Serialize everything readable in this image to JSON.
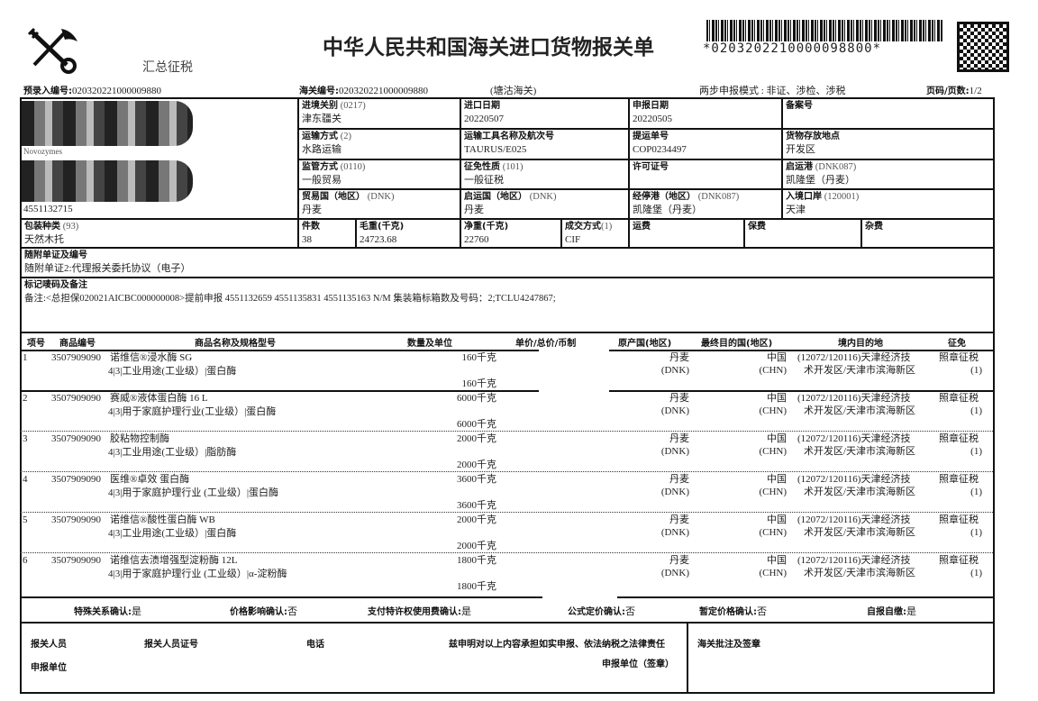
{
  "header": {
    "title": "中华人民共和国海关进口货物报关单",
    "subtitle": "汇总征税",
    "barcode_text": "*0203202210000098800*",
    "logo": "customs-emblem",
    "pre_entry_label": "预录入编号:",
    "pre_entry_no": "020320221000009880",
    "customs_no_label": "海关编号:",
    "customs_no": "020320221000009880",
    "customs_office": "(塘沽海关)",
    "two_step_mode": "两步申报模式 : 非证、涉检、涉税",
    "page_label": "页码/页数:",
    "page": "1/2"
  },
  "consignee": {
    "name_partial": "Novozymes",
    "code": "4551132715"
  },
  "fields": {
    "entry_port_label": "进境关别",
    "entry_port_code": "(0217)",
    "entry_port": "津东疆关",
    "import_date_label": "进口日期",
    "import_date": "20220507",
    "declare_date_label": "申报日期",
    "declare_date": "20220505",
    "record_no_label": "备案号",
    "record_no": "",
    "transport_mode_label": "运输方式",
    "transport_mode_code": "(2)",
    "transport_mode": "水路运输",
    "vessel_label": "运输工具名称及航次号",
    "vessel": "TAURUS/E025",
    "bl_label": "提运单号",
    "bl": "COP0234497",
    "storage_label": "货物存放地点",
    "storage": "开发区",
    "supervision_label": "监管方式",
    "supervision_code": "(0110)",
    "supervision": "一般贸易",
    "levy_label": "征免性质",
    "levy_code": "(101)",
    "levy": "一般征税",
    "license_label": "许可证号",
    "license": "",
    "dep_port_label": "启运港",
    "dep_port_code": "(DNK087)",
    "dep_port": "凯隆堡（丹麦）",
    "trade_country_label": "贸易国（地区）",
    "trade_country_code": "(DNK)",
    "trade_country": "丹麦",
    "origin_country_label": "启运国（地区）",
    "origin_country_code": "(DNK)",
    "origin_country": "丹麦",
    "via_port_label": "经停港（地区）",
    "via_port_code": "(DNK087)",
    "via_port": "凯隆堡（丹麦）",
    "entry_gate_label": "入境口岸",
    "entry_gate_code": "(120001)",
    "entry_gate": "天津",
    "package_label": "包装种类",
    "package_code": "(93)",
    "package": "天然木托",
    "pieces_label": "件数",
    "pieces": "38",
    "gross_label": "毛重(千克)",
    "gross": "24723.68",
    "net_label": "净重(千克)",
    "net": "22760",
    "terms_label": "成交方式",
    "terms_code": "(1)",
    "terms": "CIF",
    "freight_label": "运费",
    "insurance_label": "保费",
    "misc_label": "杂费",
    "docs_label": "随附单证及编号",
    "docs": "随附单证2:代理报关委托协议（电子）",
    "marks_label": "标记唛码及备注",
    "marks": "备注:<总担保020021AICBC000000008>提前申报 4551132659 4551135831 4551135163 N/M 集装箱标箱数及号码：2;TCLU4247867;"
  },
  "items_header": [
    "项号",
    "商品编号",
    "商品名称及规格型号",
    "数量及单位",
    "单价/总价/币制",
    "原产国(地区)",
    "最终目的国(地区)",
    "境内目的地",
    "征免"
  ],
  "items": [
    {
      "no": "1",
      "hs": "3507909090",
      "name": "诺维信®浸水酶 SG",
      "spec": "4|3|工业用途(工业级）|蛋白酶",
      "qty1": "160千克",
      "qty2": "160千克",
      "origin": "丹麦",
      "origin_code": "(DNK)",
      "dest": "中国",
      "dest_code": "(CHN)",
      "domestic1": "(12072/120116)天津经济技",
      "domestic2": "术开发区/天津市滨海新区",
      "levy1": "照章征税",
      "levy2": "(1)"
    },
    {
      "no": "2",
      "hs": "3507909090",
      "name": "赛威®液体蛋白酶 16 L",
      "spec": "4|3|用于家庭护理行业(工业级）|蛋白酶",
      "qty1": "6000千克",
      "qty2": "6000千克",
      "origin": "丹麦",
      "origin_code": "(DNK)",
      "dest": "中国",
      "dest_code": "(CHN)",
      "domestic1": "(12072/120116)天津经济技",
      "domestic2": "术开发区/天津市滨海新区",
      "levy1": "照章征税",
      "levy2": "(1)"
    },
    {
      "no": "3",
      "hs": "3507909090",
      "name": "胶粘物控制酶",
      "spec": "4|3|工业用途(工业级）|脂肪酶",
      "qty1": "2000千克",
      "qty2": "2000千克",
      "origin": "丹麦",
      "origin_code": "(DNK)",
      "dest": "中国",
      "dest_code": "(CHN)",
      "domestic1": "(12072/120116)天津经济技",
      "domestic2": "术开发区/天津市滨海新区",
      "levy1": "照章征税",
      "levy2": "(1)"
    },
    {
      "no": "4",
      "hs": "3507909090",
      "name": "医维®卓效 蛋白酶",
      "spec": "4|3|用于家庭护理行业 (工业级）|蛋白酶",
      "qty1": "3600千克",
      "qty2": "3600千克",
      "origin": "丹麦",
      "origin_code": "(DNK)",
      "dest": "中国",
      "dest_code": "(CHN)",
      "domestic1": "(12072/120116)天津经济技",
      "domestic2": "术开发区/天津市滨海新区",
      "levy1": "照章征税",
      "levy2": "(1)"
    },
    {
      "no": "5",
      "hs": "3507909090",
      "name": "诺维信®酸性蛋白酶 WB",
      "spec": "4|3|工业用途(工业级）|蛋白酶",
      "qty1": "2000千克",
      "qty2": "2000千克",
      "origin": "丹麦",
      "origin_code": "(DNK)",
      "dest": "中国",
      "dest_code": "(CHN)",
      "domestic1": "(12072/120116)天津经济技",
      "domestic2": "术开发区/天津市滨海新区",
      "levy1": "照章征税",
      "levy2": "(1)"
    },
    {
      "no": "6",
      "hs": "3507909090",
      "name": "诺维信去渍增强型淀粉酶 12L",
      "spec": "4|3|用于家庭护理行业 (工业级）|α-淀粉酶",
      "qty1": "1800千克",
      "qty2": "1800千克",
      "origin": "丹麦",
      "origin_code": "(DNK)",
      "dest": "中国",
      "dest_code": "(CHN)",
      "domestic1": "(12072/120116)天津经济技",
      "domestic2": "术开发区/天津市滨海新区",
      "levy1": "照章征税",
      "levy2": "(1)"
    }
  ],
  "confirm": [
    {
      "label": "特殊关系确认:",
      "value": "是"
    },
    {
      "label": "价格影响确认:",
      "value": "否"
    },
    {
      "label": "支付特许权使用费确认:",
      "value": "是"
    },
    {
      "label": "公式定价确认:",
      "value": "否"
    },
    {
      "label": "暂定价格确认:",
      "value": "否"
    },
    {
      "label": "自报自缴:",
      "value": "是"
    }
  ],
  "footer": {
    "declarant": "报关人员",
    "declarant_id": "报关人员证号",
    "phone": "电话",
    "statement": "兹申明对以上内容承担如实申报、依法纳税之法律责任",
    "unit": "申报单位",
    "unit_seal": "申报单位（签章）",
    "customs_note": "海关批注及签章"
  }
}
